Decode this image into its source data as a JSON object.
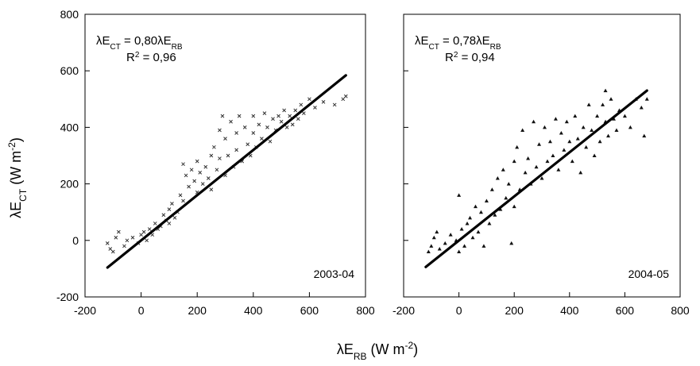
{
  "chart_data": [
    {
      "type": "scatter",
      "panel_label": "2003-04",
      "equation": {
        "prefix": "λE",
        "sub1": "CT",
        "middle": " = 0,80λE",
        "sub2": "RB"
      },
      "r2": {
        "base": "R",
        "sup": "2",
        "rest": " = 0,96"
      },
      "xlim": [
        -200,
        800
      ],
      "ylim": [
        -200,
        800
      ],
      "xticks": [
        -200,
        0,
        200,
        400,
        600,
        800
      ],
      "yticks": [
        -200,
        0,
        200,
        400,
        600,
        800
      ],
      "regression_line": {
        "x": [
          -120,
          730
        ],
        "y": [
          -96,
          584
        ]
      },
      "marker": "x",
      "points": [
        [
          -120,
          -10
        ],
        [
          -110,
          -30
        ],
        [
          -100,
          -40
        ],
        [
          -90,
          10
        ],
        [
          -80,
          30
        ],
        [
          -60,
          -20
        ],
        [
          -50,
          0
        ],
        [
          -30,
          10
        ],
        [
          -10,
          -10
        ],
        [
          0,
          20
        ],
        [
          10,
          30
        ],
        [
          20,
          0
        ],
        [
          30,
          40
        ],
        [
          40,
          20
        ],
        [
          50,
          60
        ],
        [
          60,
          40
        ],
        [
          70,
          50
        ],
        [
          80,
          90
        ],
        [
          90,
          70
        ],
        [
          100,
          110
        ],
        [
          100,
          60
        ],
        [
          110,
          130
        ],
        [
          120,
          80
        ],
        [
          130,
          100
        ],
        [
          140,
          160
        ],
        [
          150,
          140
        ],
        [
          150,
          270
        ],
        [
          160,
          230
        ],
        [
          170,
          190
        ],
        [
          180,
          250
        ],
        [
          190,
          210
        ],
        [
          200,
          280
        ],
        [
          200,
          170
        ],
        [
          210,
          240
        ],
        [
          220,
          200
        ],
        [
          230,
          260
        ],
        [
          240,
          220
        ],
        [
          250,
          300
        ],
        [
          250,
          180
        ],
        [
          260,
          330
        ],
        [
          270,
          250
        ],
        [
          280,
          390
        ],
        [
          280,
          290
        ],
        [
          290,
          440
        ],
        [
          300,
          360
        ],
        [
          300,
          230
        ],
        [
          310,
          300
        ],
        [
          320,
          420
        ],
        [
          330,
          260
        ],
        [
          340,
          380
        ],
        [
          340,
          320
        ],
        [
          350,
          440
        ],
        [
          360,
          280
        ],
        [
          370,
          400
        ],
        [
          380,
          340
        ],
        [
          390,
          300
        ],
        [
          400,
          440
        ],
        [
          400,
          380
        ],
        [
          410,
          330
        ],
        [
          420,
          410
        ],
        [
          430,
          360
        ],
        [
          440,
          450
        ],
        [
          450,
          400
        ],
        [
          460,
          350
        ],
        [
          470,
          430
        ],
        [
          480,
          390
        ],
        [
          490,
          440
        ],
        [
          500,
          420
        ],
        [
          510,
          460
        ],
        [
          520,
          400
        ],
        [
          530,
          440
        ],
        [
          540,
          410
        ],
        [
          550,
          460
        ],
        [
          560,
          430
        ],
        [
          570,
          480
        ],
        [
          580,
          450
        ],
        [
          600,
          500
        ],
        [
          620,
          470
        ],
        [
          650,
          490
        ],
        [
          690,
          480
        ],
        [
          720,
          500
        ],
        [
          730,
          510
        ]
      ]
    },
    {
      "type": "scatter",
      "panel_label": "2004-05",
      "equation": {
        "prefix": "λE",
        "sub1": "CT",
        "middle": " = 0,78λE",
        "sub2": "RB"
      },
      "r2": {
        "base": "R",
        "sup": "2",
        "rest": " = 0,94"
      },
      "xlim": [
        -200,
        800
      ],
      "ylim": [
        -200,
        800
      ],
      "xticks": [
        -200,
        0,
        200,
        400,
        600,
        800
      ],
      "yticks": [
        -200,
        0,
        200,
        400,
        600,
        800
      ],
      "regression_line": {
        "x": [
          -120,
          680
        ],
        "y": [
          -94,
          530
        ]
      },
      "marker": "triangle",
      "points": [
        [
          -110,
          -40
        ],
        [
          -100,
          -20
        ],
        [
          -90,
          10
        ],
        [
          -80,
          30
        ],
        [
          -70,
          -30
        ],
        [
          -50,
          -10
        ],
        [
          -30,
          20
        ],
        [
          -10,
          0
        ],
        [
          0,
          160
        ],
        [
          0,
          -40
        ],
        [
          10,
          40
        ],
        [
          20,
          -20
        ],
        [
          30,
          60
        ],
        [
          40,
          80
        ],
        [
          50,
          10
        ],
        [
          60,
          120
        ],
        [
          70,
          30
        ],
        [
          80,
          100
        ],
        [
          90,
          -20
        ],
        [
          100,
          140
        ],
        [
          110,
          60
        ],
        [
          120,
          180
        ],
        [
          130,
          90
        ],
        [
          140,
          220
        ],
        [
          150,
          110
        ],
        [
          160,
          250
        ],
        [
          170,
          150
        ],
        [
          180,
          200
        ],
        [
          190,
          -10
        ],
        [
          200,
          280
        ],
        [
          200,
          120
        ],
        [
          210,
          330
        ],
        [
          220,
          180
        ],
        [
          230,
          390
        ],
        [
          240,
          240
        ],
        [
          250,
          290
        ],
        [
          260,
          200
        ],
        [
          270,
          420
        ],
        [
          280,
          260
        ],
        [
          290,
          340
        ],
        [
          300,
          220
        ],
        [
          310,
          400
        ],
        [
          320,
          280
        ],
        [
          330,
          350
        ],
        [
          340,
          300
        ],
        [
          350,
          430
        ],
        [
          360,
          250
        ],
        [
          370,
          380
        ],
        [
          380,
          320
        ],
        [
          390,
          420
        ],
        [
          400,
          350
        ],
        [
          410,
          280
        ],
        [
          420,
          440
        ],
        [
          430,
          360
        ],
        [
          440,
          240
        ],
        [
          450,
          400
        ],
        [
          460,
          330
        ],
        [
          470,
          480
        ],
        [
          480,
          390
        ],
        [
          490,
          300
        ],
        [
          500,
          440
        ],
        [
          510,
          350
        ],
        [
          520,
          480
        ],
        [
          530,
          420
        ],
        [
          540,
          370
        ],
        [
          550,
          500
        ],
        [
          560,
          430
        ],
        [
          570,
          390
        ],
        [
          580,
          460
        ],
        [
          600,
          440
        ],
        [
          620,
          400
        ],
        [
          640,
          500
        ],
        [
          660,
          470
        ],
        [
          670,
          370
        ],
        [
          680,
          500
        ],
        [
          530,
          530
        ]
      ]
    }
  ],
  "shared_axes": {
    "ylabel": {
      "base": "λE",
      "sub": "CT",
      "unit_open": " (W m",
      "unit_sup": "-2",
      "unit_close": ")"
    },
    "xlabel": {
      "base": "λE",
      "sub": "RB",
      "unit_open": " (W m",
      "unit_sup": "-2",
      "unit_close": ")"
    }
  }
}
